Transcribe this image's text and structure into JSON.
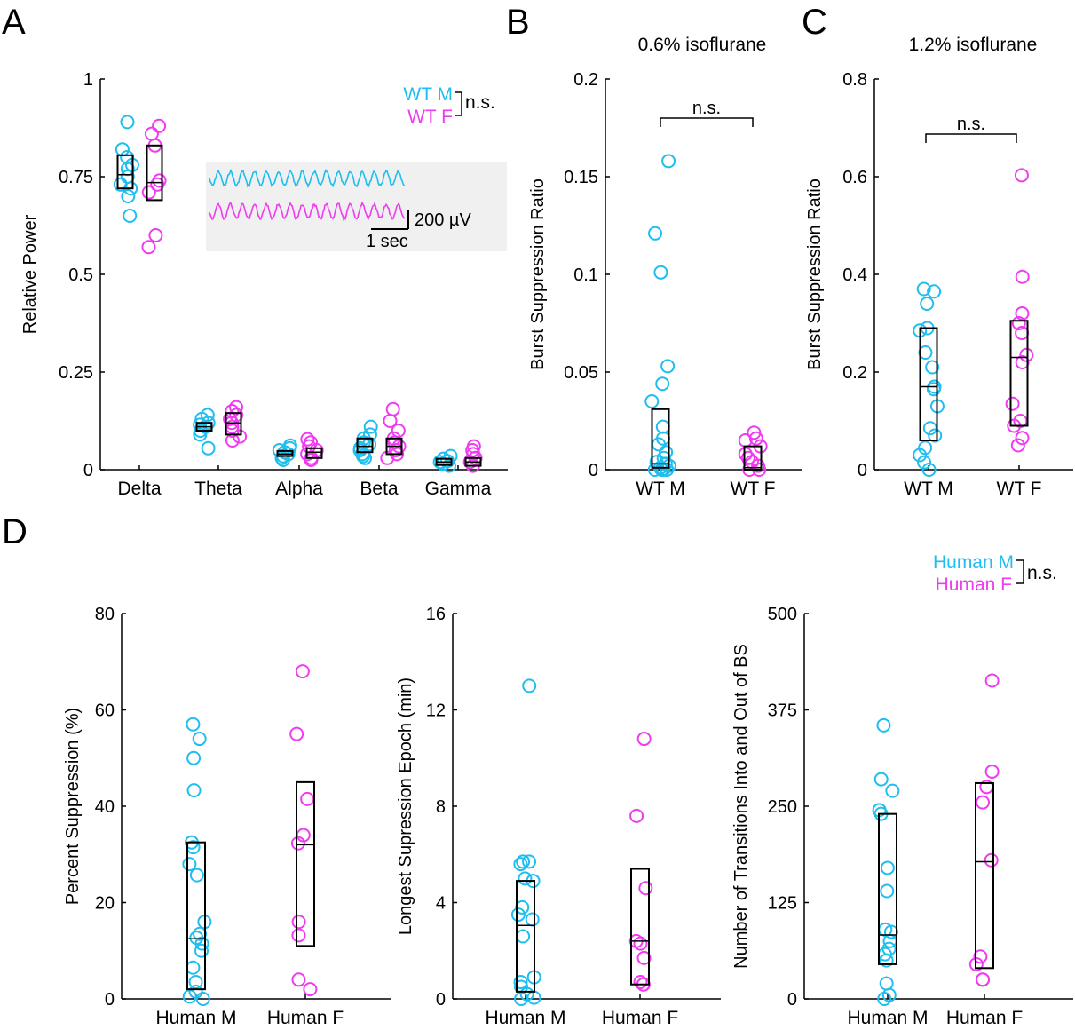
{
  "colors": {
    "male": "#1ebef0",
    "female": "#f03cf0",
    "axis": "#000000",
    "inset_bg": "#f0f0f0"
  },
  "chart_data": [
    {
      "panel": "A",
      "type": "scatter",
      "title": "",
      "xlabel": "",
      "ylabel": "Relative Power",
      "ylim": [
        0,
        1
      ],
      "yticks": [
        0,
        0.25,
        0.5,
        0.75,
        1
      ],
      "ytick_labels": [
        "0",
        "0.25",
        "0.5",
        "0.75",
        "1"
      ],
      "categories": [
        "Delta",
        "Theta",
        "Alpha",
        "Beta",
        "Gamma"
      ],
      "legend": {
        "labels": [
          "WT M",
          "WT F"
        ],
        "annotation": "n.s."
      },
      "inset": {
        "scale_voltage": "200 µV",
        "scale_time": "1 sec"
      },
      "series": [
        {
          "name": "WT M",
          "color": "male",
          "values": [
            [
              0.89,
              0.82,
              0.8,
              0.78,
              0.77,
              0.75,
              0.73,
              0.72,
              0.7,
              0.65
            ],
            [
              0.14,
              0.13,
              0.12,
              0.115,
              0.11,
              0.1,
              0.09,
              0.055
            ],
            [
              0.062,
              0.055,
              0.05,
              0.045,
              0.04,
              0.035,
              0.03,
              0.025
            ],
            [
              0.11,
              0.09,
              0.08,
              0.07,
              0.065,
              0.055,
              0.05,
              0.04,
              0.035,
              0.03
            ],
            [
              0.035,
              0.028,
              0.022,
              0.02,
              0.015,
              0.01
            ]
          ],
          "box": [
            [
              0.72,
              0.755,
              0.805
            ],
            [
              0.1,
              0.11,
              0.12
            ],
            [
              0.035,
              0.04,
              0.048
            ],
            [
              0.045,
              0.06,
              0.08
            ],
            [
              0.012,
              0.02,
              0.028
            ]
          ]
        },
        {
          "name": "WT F",
          "color": "female",
          "values": [
            [
              0.88,
              0.86,
              0.83,
              0.74,
              0.73,
              0.71,
              0.6,
              0.57
            ],
            [
              0.16,
              0.15,
              0.14,
              0.13,
              0.12,
              0.11,
              0.1,
              0.085,
              0.075
            ],
            [
              0.078,
              0.07,
              0.06,
              0.05,
              0.04,
              0.03,
              0.025
            ],
            [
              0.155,
              0.125,
              0.1,
              0.08,
              0.07,
              0.06,
              0.05,
              0.04,
              0.03
            ],
            [
              0.06,
              0.05,
              0.04,
              0.03,
              0.02,
              0.01
            ]
          ],
          "box": [
            [
              0.69,
              0.735,
              0.83
            ],
            [
              0.09,
              0.12,
              0.145
            ],
            [
              0.03,
              0.045,
              0.055
            ],
            [
              0.04,
              0.06,
              0.08
            ],
            [
              0.01,
              0.02,
              0.03
            ]
          ]
        }
      ]
    },
    {
      "panel": "B",
      "type": "scatter",
      "title": "0.6% isoflurane",
      "xlabel": "",
      "ylabel": "Burst Suppression Ratio",
      "ylim": [
        0,
        0.2
      ],
      "yticks": [
        0,
        0.05,
        0.1,
        0.15,
        0.2
      ],
      "ytick_labels": [
        "0",
        "0.05",
        "0.1",
        "0.15",
        "0.2"
      ],
      "categories": [
        "WT M",
        "WT F"
      ],
      "annotation": "n.s.",
      "series": [
        {
          "name": "WT M",
          "color": "male",
          "values": [
            0.158,
            0.121,
            0.101,
            0.053,
            0.044,
            0.035,
            0.022,
            0.016,
            0.013,
            0.009,
            0.006,
            0.004,
            0.003,
            0.002,
            0.001,
            0.0,
            0.0,
            0.0,
            0.0
          ],
          "box": [
            0.001,
            0.003,
            0.031
          ]
        },
        {
          "name": "WT F",
          "color": "female",
          "values": [
            0.019,
            0.016,
            0.015,
            0.012,
            0.008,
            0.006,
            0.004,
            0.002,
            0.0,
            0.0
          ],
          "box": [
            0.0,
            0.001,
            0.012
          ]
        }
      ]
    },
    {
      "panel": "C",
      "type": "scatter",
      "title": "1.2% isoflurane",
      "xlabel": "",
      "ylabel": "Burst Suppression Ratio",
      "ylim": [
        0,
        0.8
      ],
      "yticks": [
        0,
        0.2,
        0.4,
        0.6,
        0.8
      ],
      "ytick_labels": [
        "0",
        "0.2",
        "0.4",
        "0.6",
        "0.8"
      ],
      "categories": [
        "WT M",
        "WT F"
      ],
      "annotation": "n.s.",
      "series": [
        {
          "name": "WT M",
          "color": "male",
          "values": [
            0.37,
            0.365,
            0.34,
            0.29,
            0.285,
            0.24,
            0.21,
            0.17,
            0.165,
            0.13,
            0.085,
            0.07,
            0.045,
            0.03,
            0.015,
            0.0
          ],
          "box": [
            0.06,
            0.17,
            0.29
          ]
        },
        {
          "name": "WT F",
          "color": "female",
          "values": [
            0.603,
            0.395,
            0.32,
            0.3,
            0.28,
            0.235,
            0.22,
            0.135,
            0.1,
            0.09,
            0.065,
            0.05
          ],
          "box": [
            0.09,
            0.23,
            0.305
          ]
        }
      ]
    },
    {
      "panel": "D1",
      "type": "scatter",
      "title": "",
      "xlabel": "",
      "ylabel": "Percent Suppression (%)",
      "ylim": [
        0,
        80
      ],
      "yticks": [
        0,
        20,
        40,
        60,
        80
      ],
      "ytick_labels": [
        "0",
        "20",
        "40",
        "60",
        "80"
      ],
      "categories": [
        "Human M",
        "Human F"
      ],
      "legend": {
        "labels": [
          "Human M",
          "Human F"
        ],
        "annotation": "n.s."
      },
      "series": [
        {
          "name": "Human M",
          "color": "male",
          "values": [
            57,
            54,
            50,
            43.3,
            32.5,
            31.5,
            28,
            25.7,
            16,
            13.5,
            12.7,
            11.5,
            10,
            6.5,
            3.5,
            1.5,
            0.5,
            0
          ],
          "box": [
            2,
            12.5,
            32.5
          ]
        },
        {
          "name": "Human F",
          "color": "female",
          "values": [
            68,
            55,
            41.5,
            34,
            32.3,
            16,
            13.2,
            4,
            2
          ],
          "box": [
            11,
            32,
            45
          ]
        }
      ]
    },
    {
      "panel": "D2",
      "type": "scatter",
      "title": "",
      "xlabel": "",
      "ylabel": "Longest Supression Epoch (min)",
      "ylim": [
        0,
        16
      ],
      "yticks": [
        0,
        4,
        8,
        12,
        16
      ],
      "ytick_labels": [
        "0",
        "4",
        "8",
        "12",
        "16"
      ],
      "categories": [
        "Human M",
        "Human F"
      ],
      "series": [
        {
          "name": "Human M",
          "color": "male",
          "values": [
            13.0,
            5.7,
            5.7,
            5.6,
            5.0,
            4.9,
            3.8,
            3.5,
            3.3,
            2.6,
            0.9,
            0.7,
            0.5,
            0.2,
            0.05,
            0.0
          ],
          "box": [
            0.3,
            3.05,
            4.9
          ]
        },
        {
          "name": "Human F",
          "color": "female",
          "values": [
            10.8,
            7.6,
            4.6,
            2.4,
            2.3,
            1.7,
            0.7,
            0.6,
            0.6
          ],
          "box": [
            0.6,
            2.4,
            5.4
          ]
        }
      ]
    },
    {
      "panel": "D3",
      "type": "scatter",
      "title": "",
      "xlabel": "",
      "ylabel": "Number of Transitions Into and Out of BS",
      "ylim": [
        0,
        500
      ],
      "yticks": [
        0,
        125,
        250,
        375,
        500
      ],
      "ytick_labels": [
        "0",
        "125",
        "250",
        "375",
        "500"
      ],
      "categories": [
        "Human M",
        "Human F"
      ],
      "series": [
        {
          "name": "Human M",
          "color": "male",
          "values": [
            355,
            285,
            270,
            245,
            240,
            170,
            140,
            90,
            87,
            75,
            65,
            58,
            50,
            20,
            5,
            0
          ],
          "box": [
            45,
            83,
            240
          ]
        },
        {
          "name": "Human F",
          "color": "female",
          "values": [
            413,
            295,
            275,
            255,
            180,
            55,
            45,
            25,
            25
          ],
          "box": [
            40,
            178,
            280
          ]
        }
      ]
    }
  ]
}
